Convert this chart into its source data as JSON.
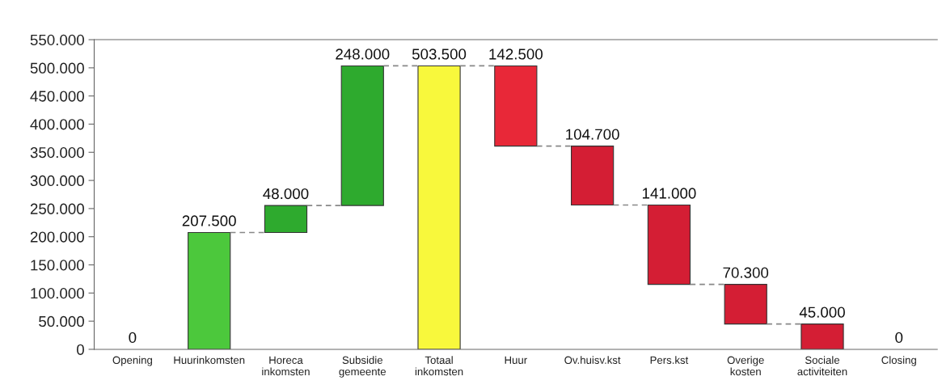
{
  "chart_data": {
    "type": "bar",
    "categories": [
      "Opening",
      "Huurinkomsten",
      "Horeca\ninkomsten",
      "Subsidie\ngemeente",
      "Totaal\ninkomsten",
      "Huur",
      "Ov.huisv.kst",
      "Pers.kst",
      "Overige\nkosten",
      "Sociale\nactiviteiten",
      "Closing"
    ],
    "values": [
      0,
      207500,
      48000,
      248000,
      503500,
      -142500,
      -104700,
      -141000,
      -70300,
      -45000,
      0
    ],
    "base": [
      null,
      0,
      207500,
      255500,
      0,
      503500,
      361000,
      256300,
      115300,
      45000,
      null
    ],
    "colors": [
      "#2eaa2e",
      "#4cc83c",
      "#2eaa2e",
      "#2eaa2e",
      "#f8f83c",
      "#e82838",
      "#d41e34",
      "#d41e34",
      "#d41e34",
      "#d41e34",
      "#d41e34"
    ],
    "value_labels": [
      "0",
      "207.500",
      "48.000",
      "248.000",
      "503.500",
      "142.500",
      "104.700",
      "141.000",
      "70.300",
      "45.000",
      "0"
    ],
    "ylim": [
      0,
      550000
    ],
    "yticks": [
      0,
      {
        "value": 50000,
        "label": "50.000"
      },
      {
        "value": 100000,
        "label": "100.000"
      },
      {
        "value": 150000,
        "label": "150.000"
      },
      {
        "value": 200000,
        "label": "200.000"
      },
      {
        "value": 250000,
        "label": "250.000"
      },
      {
        "value": 300000,
        "label": "300.000"
      },
      {
        "value": 350000,
        "label": "350.000"
      },
      {
        "value": 400000,
        "label": "400.000"
      },
      {
        "value": 450000,
        "label": "450.000"
      },
      {
        "value": 500000,
        "label": "500.000"
      },
      {
        "value": 550000,
        "label": "550.000"
      }
    ],
    "grid": false,
    "legend": false
  }
}
